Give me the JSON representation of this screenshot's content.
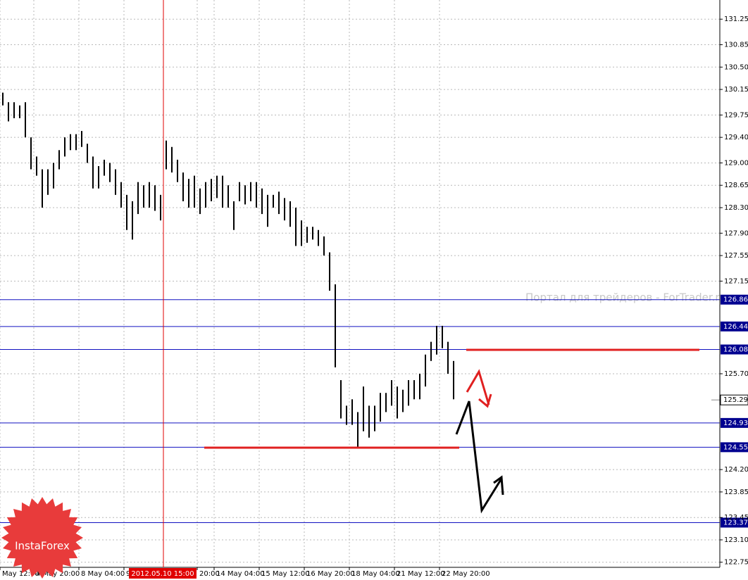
{
  "chart_data": {
    "type": "ohlc",
    "color": "#000000",
    "high": [
      130.1,
      129.95,
      129.95,
      129.9,
      129.95,
      129.4,
      129.1,
      128.9,
      128.9,
      129.0,
      129.2,
      129.4,
      129.45,
      129.45,
      129.5,
      129.3,
      129.1,
      128.95,
      129.05,
      129.0,
      128.9,
      128.7,
      128.5,
      128.4,
      128.7,
      128.65,
      128.7,
      128.65,
      128.5,
      129.35,
      129.25,
      129.05,
      128.85,
      128.75,
      128.8,
      128.6,
      128.7,
      128.75,
      128.8,
      128.8,
      128.65,
      128.4,
      128.7,
      128.65,
      128.7,
      128.7,
      128.6,
      128.5,
      128.5,
      128.55,
      128.45,
      128.4,
      128.3,
      128.1,
      128.0,
      128.0,
      127.95,
      127.85,
      127.6,
      127.1,
      125.6,
      125.2,
      125.3,
      125.1,
      125.5,
      125.2,
      125.2,
      125.4,
      125.4,
      125.6,
      125.5,
      125.45,
      125.6,
      125.6,
      125.7,
      126.0,
      126.2,
      126.45,
      126.45,
      126.2,
      125.9
    ],
    "low": [
      129.9,
      129.65,
      129.7,
      129.7,
      129.4,
      128.9,
      128.8,
      128.3,
      128.5,
      128.6,
      128.9,
      129.1,
      129.2,
      129.2,
      129.25,
      129.0,
      128.6,
      128.6,
      128.8,
      128.7,
      128.5,
      128.3,
      127.95,
      127.8,
      128.2,
      128.3,
      128.3,
      128.25,
      128.1,
      128.9,
      128.85,
      128.7,
      128.4,
      128.3,
      128.3,
      128.2,
      128.3,
      128.4,
      128.45,
      128.3,
      128.3,
      127.95,
      128.4,
      128.35,
      128.4,
      128.3,
      128.2,
      128.0,
      128.3,
      128.2,
      128.1,
      128.0,
      127.7,
      127.7,
      127.75,
      127.8,
      127.7,
      127.55,
      127.0,
      125.8,
      125.0,
      124.9,
      124.9,
      124.55,
      124.8,
      124.7,
      124.8,
      124.95,
      125.1,
      125.2,
      125.0,
      125.1,
      125.2,
      125.3,
      125.3,
      125.5,
      125.9,
      126.0,
      126.1,
      125.7,
      125.3
    ],
    "xlim": [
      0,
      127.5
    ],
    "ylim": [
      122.67,
      131.55
    ],
    "yticks": [
      {
        "value": 131.25,
        "label": "131.25"
      },
      130.85,
      {
        "value": 130.5,
        "label": "130.50"
      },
      130.15,
      129.75,
      {
        "value": 129.4,
        "label": "129.40"
      },
      {
        "value": 129.0,
        "label": "129.00"
      },
      128.65,
      {
        "value": 128.3,
        "label": "128.30"
      },
      {
        "value": 127.9,
        "label": "127.90"
      },
      127.55,
      127.15,
      {
        "value": 125.7,
        "label": "125.70"
      },
      {
        "value": 124.2,
        "label": "124.20"
      },
      123.85,
      123.45,
      {
        "value": 123.1,
        "label": "123.10"
      },
      122.75
    ],
    "xticks": [
      {
        "value": 0,
        "label": "May 12:00"
      },
      {
        "value": 6,
        "label": "4 May 20:00"
      },
      {
        "value": 14,
        "label": "8 May 04:00"
      },
      {
        "value": 22,
        "label": "9"
      },
      {
        "value": 35,
        "label": "20:00"
      },
      {
        "value": 38,
        "label": "14 May 04:00"
      },
      {
        "value": 46,
        "label": "15 May 12:00"
      },
      {
        "value": 54,
        "label": "16 May 20:00"
      },
      {
        "value": 62,
        "label": "18 May 04:00"
      },
      {
        "value": 70,
        "label": "21 May 12:00"
      },
      {
        "value": 78,
        "label": "22 May 20:00"
      }
    ],
    "grid": true,
    "levels": [
      126.86,
      126.44,
      126.08,
      124.93,
      124.55,
      123.37
    ],
    "current_price": 125.29,
    "cursor": {
      "x": 29,
      "label": "2012.05.10 15:00"
    },
    "watermark": "Портал для трейдеров - ForTrader.ru",
    "logo": "InstaForex"
  }
}
